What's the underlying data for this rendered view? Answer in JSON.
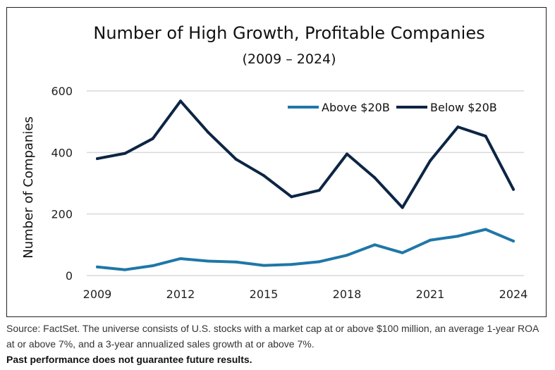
{
  "chart_data": {
    "type": "line",
    "title": "Number of High Growth, Profitable Companies",
    "subtitle": "(2009 – 2024)",
    "xlabel": "",
    "ylabel": "Number of Companies",
    "x": [
      2009,
      2010,
      2011,
      2012,
      2013,
      2014,
      2015,
      2016,
      2017,
      2018,
      2019,
      2020,
      2021,
      2022,
      2023,
      2024
    ],
    "x_ticks": [
      "2009",
      "2012",
      "2015",
      "2018",
      "2021",
      "2024"
    ],
    "y_ticks": [
      "0",
      "200",
      "400",
      "600"
    ],
    "ylim": [
      0,
      600
    ],
    "grid": "horizontal",
    "legend_position": "top-right",
    "series": [
      {
        "name": "Above $20B",
        "color": "#1f77a8",
        "values": [
          28,
          19,
          32,
          55,
          47,
          44,
          33,
          36,
          45,
          66,
          100,
          74,
          115,
          128,
          150,
          112
        ]
      },
      {
        "name": "Below $20B",
        "color": "#0d2544",
        "values": [
          380,
          397,
          445,
          567,
          465,
          378,
          325,
          256,
          277,
          395,
          318,
          221,
          373,
          483,
          453,
          280
        ]
      }
    ]
  },
  "footnote": {
    "source": "Source: FactSet. The universe consists of U.S. stocks with a market cap at or above $100 million, an average 1-year ROA at or above 7%, and a 3-year annualized sales growth at or above 7%.",
    "disclaimer": "Past performance does not guarantee future results."
  }
}
